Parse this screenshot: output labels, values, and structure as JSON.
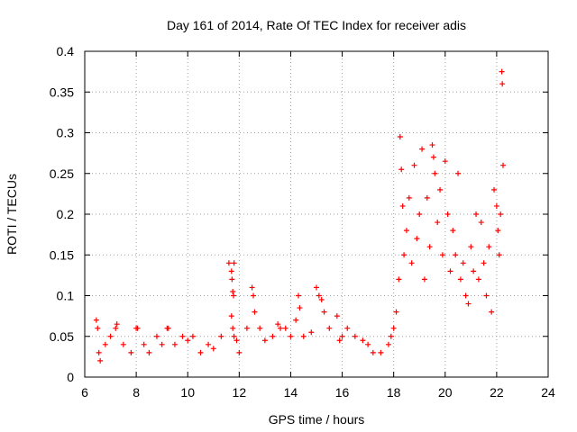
{
  "chart_data": {
    "type": "scatter",
    "title": "Day 161 of 2014, Rate Of TEC Index for receiver adis",
    "xlabel": "GPS time / hours",
    "ylabel": "ROTI / TECUs",
    "xlim": [
      6,
      24
    ],
    "ylim": [
      0,
      0.4
    ],
    "x_ticks": [
      "6",
      "8",
      "10",
      "12",
      "14",
      "16",
      "18",
      "20",
      "22",
      "24"
    ],
    "y_ticks": [
      "0",
      "0.05",
      "0.1",
      "0.15",
      "0.2",
      "0.25",
      "0.3",
      "0.35",
      "0.4"
    ],
    "grid": true,
    "marker": "+",
    "marker_color": "#ff0000",
    "series": [
      {
        "name": "ROTI",
        "x": [
          6.45,
          6.5,
          6.55,
          6.6,
          6.8,
          7.0,
          7.2,
          7.25,
          7.5,
          7.8,
          8.0,
          8.05,
          8.3,
          8.5,
          8.8,
          9.0,
          9.2,
          9.25,
          9.5,
          9.8,
          10.0,
          10.2,
          10.5,
          10.8,
          11.0,
          11.3,
          11.6,
          11.7,
          11.72,
          11.75,
          11.78,
          11.8,
          11.7,
          11.75,
          11.8,
          11.9,
          12.0,
          12.3,
          12.5,
          12.55,
          12.6,
          12.8,
          13.0,
          13.3,
          13.5,
          13.6,
          13.8,
          14.0,
          14.2,
          14.3,
          14.35,
          14.5,
          14.8,
          15.0,
          15.1,
          15.2,
          15.3,
          15.5,
          15.8,
          15.9,
          16.0,
          16.2,
          16.5,
          16.8,
          17.0,
          17.2,
          17.5,
          17.8,
          17.9,
          18.0,
          18.1,
          18.2,
          18.25,
          18.3,
          18.35,
          18.4,
          18.5,
          18.6,
          18.7,
          18.8,
          18.9,
          19.0,
          19.1,
          19.2,
          19.3,
          19.4,
          19.5,
          19.55,
          19.6,
          19.7,
          19.8,
          19.9,
          20.0,
          20.1,
          20.2,
          20.3,
          20.4,
          20.5,
          20.6,
          20.7,
          20.8,
          20.9,
          21.0,
          21.1,
          21.2,
          21.3,
          21.4,
          21.5,
          21.6,
          21.7,
          21.8,
          21.9,
          22.0,
          22.05,
          22.1,
          22.15,
          22.2,
          22.22,
          22.25
        ],
        "y": [
          0.07,
          0.06,
          0.03,
          0.02,
          0.04,
          0.05,
          0.06,
          0.065,
          0.04,
          0.03,
          0.06,
          0.06,
          0.04,
          0.03,
          0.05,
          0.04,
          0.06,
          0.06,
          0.04,
          0.05,
          0.045,
          0.05,
          0.03,
          0.04,
          0.035,
          0.05,
          0.14,
          0.13,
          0.12,
          0.105,
          0.1,
          0.14,
          0.075,
          0.06,
          0.05,
          0.045,
          0.03,
          0.06,
          0.11,
          0.1,
          0.08,
          0.06,
          0.045,
          0.05,
          0.065,
          0.06,
          0.06,
          0.05,
          0.07,
          0.1,
          0.085,
          0.05,
          0.055,
          0.11,
          0.1,
          0.095,
          0.08,
          0.06,
          0.075,
          0.045,
          0.05,
          0.06,
          0.05,
          0.045,
          0.04,
          0.03,
          0.03,
          0.04,
          0.05,
          0.06,
          0.08,
          0.12,
          0.295,
          0.255,
          0.21,
          0.15,
          0.18,
          0.22,
          0.14,
          0.26,
          0.17,
          0.2,
          0.28,
          0.12,
          0.22,
          0.16,
          0.285,
          0.27,
          0.25,
          0.19,
          0.23,
          0.15,
          0.265,
          0.2,
          0.13,
          0.18,
          0.15,
          0.25,
          0.12,
          0.14,
          0.1,
          0.09,
          0.16,
          0.13,
          0.2,
          0.12,
          0.19,
          0.14,
          0.1,
          0.16,
          0.08,
          0.23,
          0.21,
          0.18,
          0.15,
          0.2,
          0.375,
          0.36,
          0.26
        ]
      }
    ]
  }
}
